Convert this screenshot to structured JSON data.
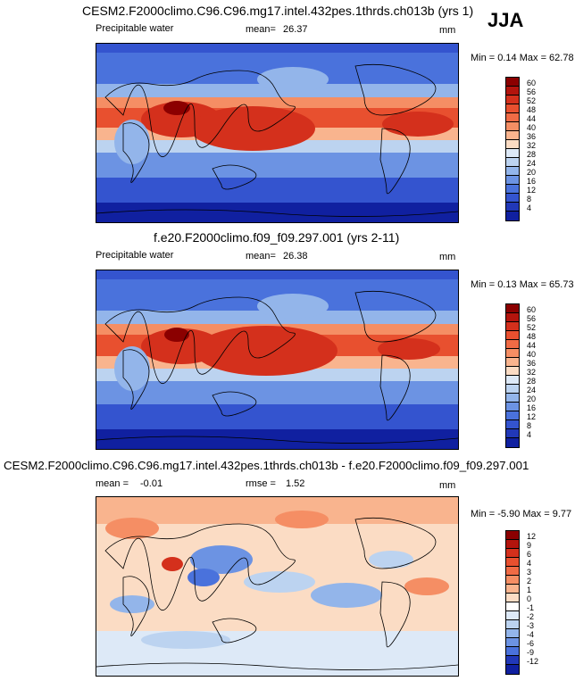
{
  "season": "JJA",
  "panels": [
    {
      "title": "CESM2.F2000climo.C96.C96.mg17.intel.432pes.1thrds.ch013b (yrs 1)",
      "variable": "Precipitable water",
      "mean_label": "mean=",
      "mean_value": "26.37",
      "units": "mm",
      "minmax": "Min =  0.14 Max =  62.78",
      "ticks": [
        "60",
        "56",
        "52",
        "48",
        "44",
        "40",
        "36",
        "32",
        "28",
        "24",
        "20",
        "16",
        "12",
        "8",
        "4"
      ],
      "colors": [
        "#8b0000",
        "#b3140d",
        "#d4301c",
        "#e8502f",
        "#f06b45",
        "#f58e64",
        "#f9b48e",
        "#fbdcc4",
        "#dde9f7",
        "#bcd3f0",
        "#93b5ea",
        "#6c93e3",
        "#4a72dc",
        "#3454cf",
        "#2138b8",
        "#1020a0"
      ]
    },
    {
      "title": "f.e20.F2000climo.f09_f09.297.001 (yrs 2-11)",
      "variable": "Precipitable water",
      "mean_label": "mean=",
      "mean_value": "26.38",
      "units": "mm",
      "minmax": "Min =  0.13 Max =  65.73",
      "ticks": [
        "60",
        "56",
        "52",
        "48",
        "44",
        "40",
        "36",
        "32",
        "28",
        "24",
        "20",
        "16",
        "12",
        "8",
        "4"
      ],
      "colors": [
        "#8b0000",
        "#b3140d",
        "#d4301c",
        "#e8502f",
        "#f06b45",
        "#f58e64",
        "#f9b48e",
        "#fbdcc4",
        "#dde9f7",
        "#bcd3f0",
        "#93b5ea",
        "#6c93e3",
        "#4a72dc",
        "#3454cf",
        "#2138b8",
        "#1020a0"
      ]
    },
    {
      "title": "CESM2.F2000climo.C96.C96.mg17.intel.432pes.1thrds.ch013b - f.e20.F2000climo.f09_f09.297.001",
      "mean_label": "mean =",
      "mean_value": "-0.01",
      "rmse_label": "rmse =",
      "rmse_value": "1.52",
      "units": "mm",
      "minmax": "Min = -5.90 Max =  9.77",
      "ticks": [
        "12",
        "9",
        "6",
        "4",
        "3",
        "2",
        "1",
        "0",
        "-1",
        "-2",
        "-3",
        "-4",
        "-6",
        "-9",
        "-12"
      ],
      "colors": [
        "#8b0000",
        "#b3140d",
        "#d4301c",
        "#e8502f",
        "#f06b45",
        "#f58e64",
        "#f9b48e",
        "#fbdcc4",
        "#ffffff",
        "#dde9f7",
        "#bcd3f0",
        "#93b5ea",
        "#6c93e3",
        "#4a72dc",
        "#2138b8",
        "#1020a0"
      ]
    }
  ]
}
